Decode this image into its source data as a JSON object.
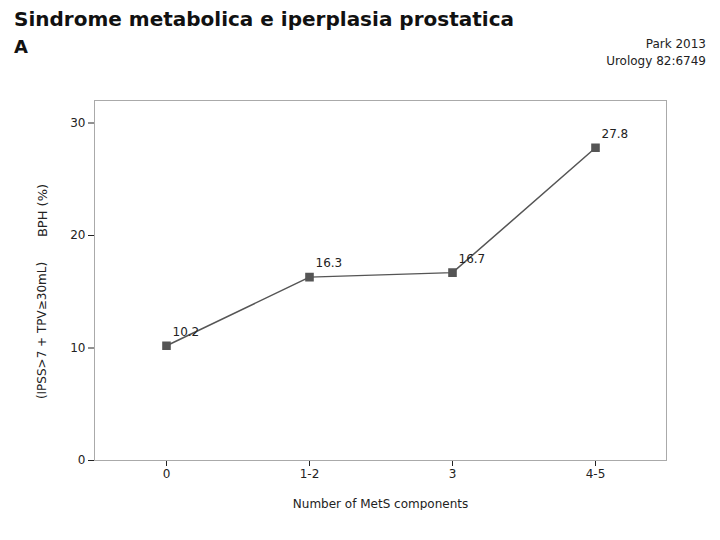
{
  "chart_data": {
    "type": "line",
    "title": "Sindrome metabolica e iperplasia prostatica",
    "subtitle": [
      "Park 2013",
      "Urology 82:6749"
    ],
    "annotations": [
      "A"
    ],
    "categories": [
      "0",
      "1-2",
      "3",
      "4-5"
    ],
    "values": [
      10.2,
      16.3,
      16.7,
      27.8
    ],
    "xlabel": "Number of MetS components",
    "ylabel": [
      "BPH (%)",
      "(IPSS>7 + TPV≥30mL)"
    ],
    "ylim": [
      0,
      32
    ],
    "yticks": [
      0,
      10,
      20,
      30
    ],
    "color": "#555555",
    "marker": "square",
    "data_labels": true,
    "grid": false
  }
}
